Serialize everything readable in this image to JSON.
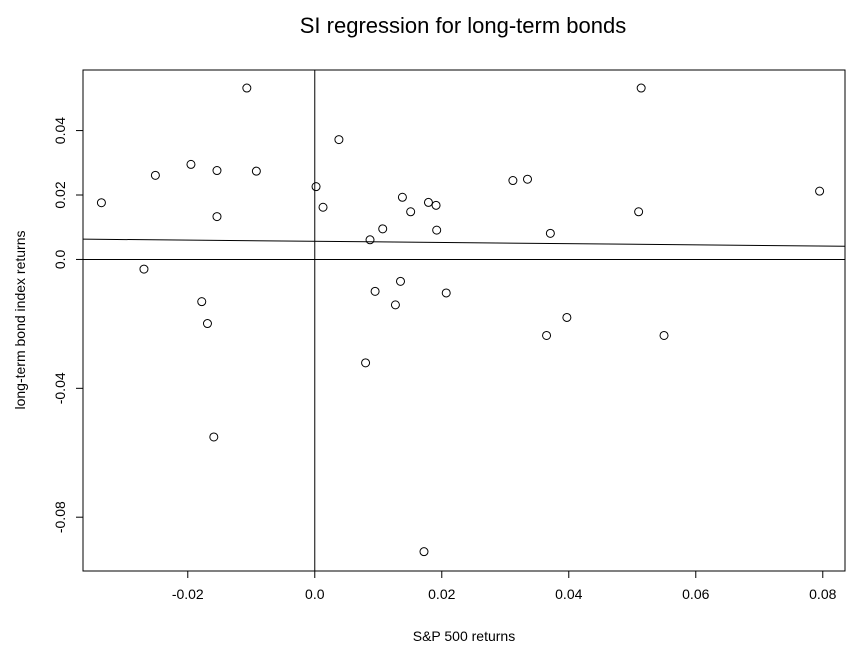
{
  "chart_data": {
    "type": "scatter",
    "title": "SI regression for long-term bonds",
    "xlabel": "S&P 500 returns",
    "ylabel": "long-term bond index returns",
    "xlim": [
      -0.0365,
      0.0835
    ],
    "ylim": [
      -0.0967,
      0.0588
    ],
    "xticks": [
      -0.02,
      0.0,
      0.02,
      0.04,
      0.06,
      0.08
    ],
    "xtick_labels": [
      "-0.02",
      "0.0",
      "0.02",
      "0.04",
      "0.06",
      "0.08"
    ],
    "yticks": [
      -0.08,
      -0.04,
      0.0,
      0.02,
      0.04
    ],
    "ytick_labels": [
      "-0.08",
      "-0.04",
      "0.0",
      "0.02",
      "0.04"
    ],
    "grid": false,
    "reference_lines": {
      "vertical_x": 0.0,
      "horizontal_y": 0.0
    },
    "regression_line": {
      "x": [
        -0.0365,
        0.0835
      ],
      "y": [
        0.0063,
        0.0041
      ]
    },
    "points": [
      {
        "x": -0.0336,
        "y": 0.0176
      },
      {
        "x": -0.0269,
        "y": -0.003
      },
      {
        "x": -0.0251,
        "y": 0.0261
      },
      {
        "x": -0.0195,
        "y": 0.0295
      },
      {
        "x": -0.0178,
        "y": -0.0131
      },
      {
        "x": -0.0169,
        "y": -0.0199
      },
      {
        "x": -0.0159,
        "y": -0.0551
      },
      {
        "x": -0.0154,
        "y": 0.0276
      },
      {
        "x": -0.0154,
        "y": 0.0133
      },
      {
        "x": -0.0107,
        "y": 0.0532
      },
      {
        "x": -0.0092,
        "y": 0.0274
      },
      {
        "x": 0.0002,
        "y": 0.0226
      },
      {
        "x": 0.0013,
        "y": 0.0162
      },
      {
        "x": 0.0038,
        "y": 0.0372
      },
      {
        "x": 0.008,
        "y": -0.0321
      },
      {
        "x": 0.0087,
        "y": 0.0061
      },
      {
        "x": 0.0095,
        "y": -0.0099
      },
      {
        "x": 0.0107,
        "y": 0.0095
      },
      {
        "x": 0.0127,
        "y": -0.0141
      },
      {
        "x": 0.0135,
        "y": -0.0068
      },
      {
        "x": 0.0138,
        "y": 0.0193
      },
      {
        "x": 0.0151,
        "y": 0.0148
      },
      {
        "x": 0.0172,
        "y": -0.0907
      },
      {
        "x": 0.0179,
        "y": 0.0177
      },
      {
        "x": 0.0191,
        "y": 0.0168
      },
      {
        "x": 0.0192,
        "y": 0.0091
      },
      {
        "x": 0.0207,
        "y": -0.0104
      },
      {
        "x": 0.0312,
        "y": 0.0245
      },
      {
        "x": 0.0335,
        "y": 0.0249
      },
      {
        "x": 0.0365,
        "y": -0.0236
      },
      {
        "x": 0.0371,
        "y": 0.0081
      },
      {
        "x": 0.0397,
        "y": -0.018
      },
      {
        "x": 0.051,
        "y": 0.0148
      },
      {
        "x": 0.0514,
        "y": 0.0532
      },
      {
        "x": 0.055,
        "y": -0.0236
      },
      {
        "x": 0.0795,
        "y": 0.0212
      }
    ]
  }
}
